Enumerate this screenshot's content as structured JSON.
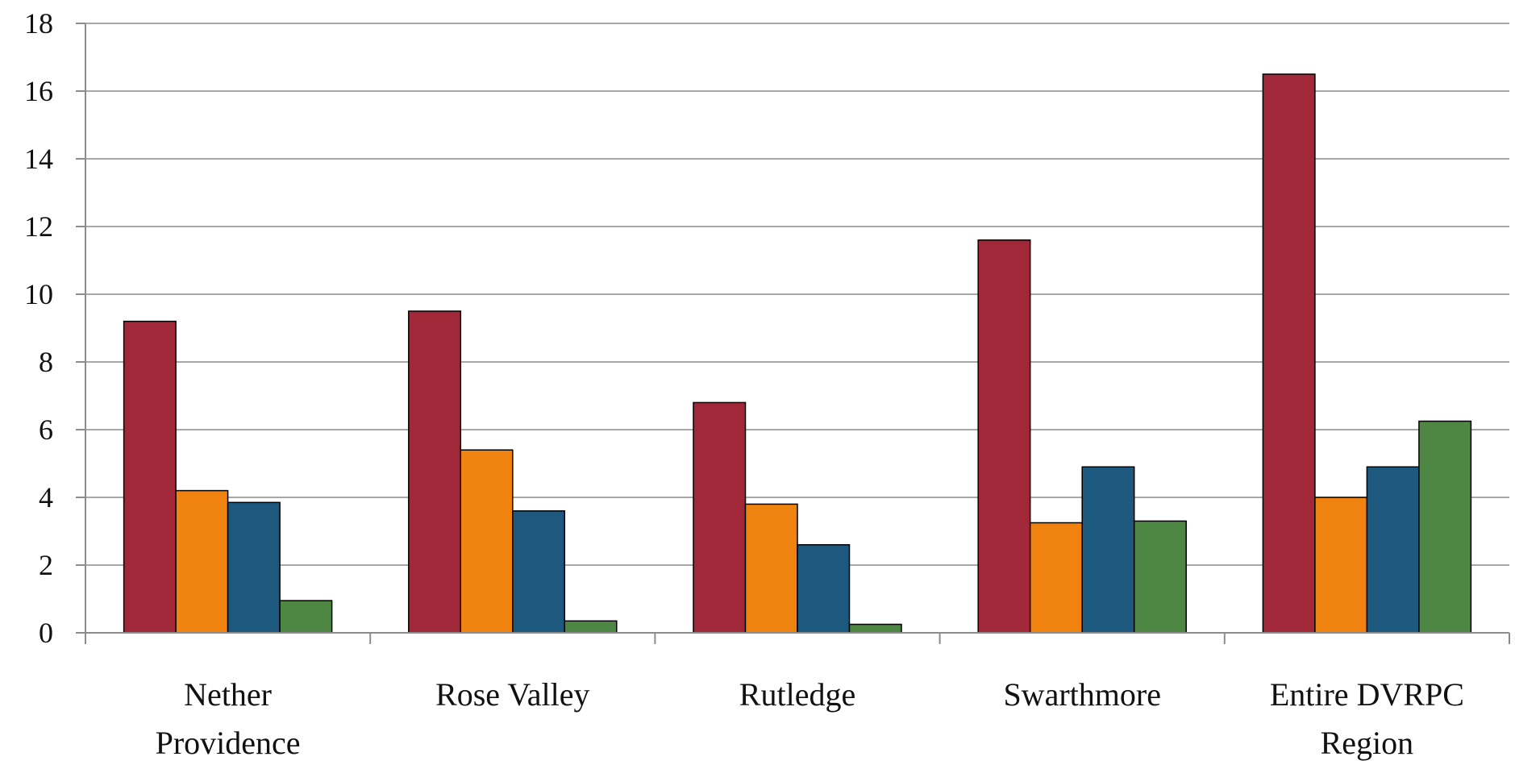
{
  "chart_data": {
    "type": "bar",
    "title": "",
    "xlabel": "",
    "ylabel": "",
    "ylim": [
      0,
      18
    ],
    "yticks": [
      0,
      2,
      4,
      6,
      8,
      10,
      12,
      14,
      16,
      18
    ],
    "grid": true,
    "legend": "none",
    "categories": [
      [
        "Nether",
        "Providence"
      ],
      [
        "Rose Valley"
      ],
      [
        "Rutledge"
      ],
      [
        "Swarthmore"
      ],
      [
        "Entire DVRPC",
        "Region"
      ]
    ],
    "series": [
      {
        "color": "#a12838",
        "values": [
          9.2,
          9.5,
          6.8,
          11.6,
          16.5
        ]
      },
      {
        "color": "#f0820f",
        "values": [
          4.2,
          5.4,
          3.8,
          3.25,
          4.0
        ]
      },
      {
        "color": "#1d587e",
        "values": [
          3.85,
          3.6,
          2.6,
          4.9,
          4.9
        ]
      },
      {
        "color": "#4e8744",
        "values": [
          0.95,
          0.35,
          0.25,
          3.3,
          6.25
        ]
      }
    ]
  }
}
